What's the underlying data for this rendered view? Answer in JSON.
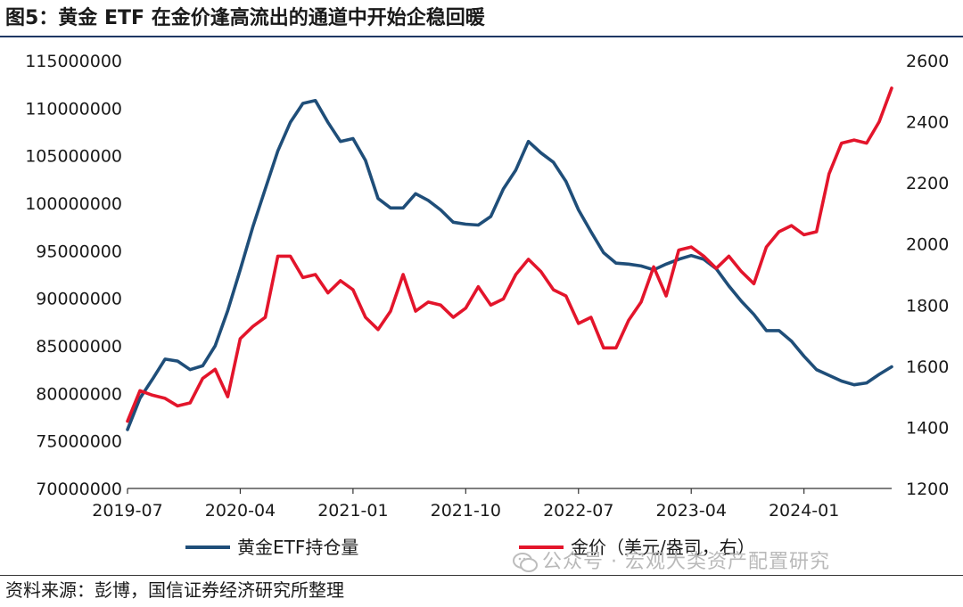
{
  "title": "图5：黄金 ETF 在金价逢高流出的通道中开始企稳回暖",
  "source": "资料来源：彭博，国信证券经济研究所整理",
  "watermark": "公众号 · 宏观大类资产配置研究",
  "colors": {
    "series1": "#1f4e79",
    "series2": "#e3152b",
    "rule": "#1f3864"
  },
  "chart_data": {
    "type": "line",
    "x_ticks": [
      "2019-07",
      "2020-04",
      "2021-01",
      "2021-10",
      "2022-07",
      "2023-04",
      "2024-01"
    ],
    "x_range": [
      "2019-07",
      "2024-08"
    ],
    "y_left": {
      "ticks": [
        "115000000",
        "110000000",
        "105000000",
        "100000000",
        "95000000",
        "90000000",
        "85000000",
        "80000000",
        "75000000",
        "70000000"
      ],
      "range": [
        70000000,
        115000000
      ]
    },
    "y_right": {
      "ticks": [
        "2600",
        "2400",
        "2200",
        "2000",
        "1800",
        "1600",
        "1400",
        "1200"
      ],
      "range": [
        1200,
        2600
      ]
    },
    "legend_position": "bottom",
    "series": [
      {
        "name": "黄金ETF持仓量",
        "axis": "left",
        "color": "#1f4e79",
        "points": [
          [
            "2019-07",
            76200000
          ],
          [
            "2019-08",
            79500000
          ],
          [
            "2019-09",
            81500000
          ],
          [
            "2019-10",
            83600000
          ],
          [
            "2019-11",
            83400000
          ],
          [
            "2019-12",
            82500000
          ],
          [
            "2020-01",
            82900000
          ],
          [
            "2020-02",
            85000000
          ],
          [
            "2020-03",
            88700000
          ],
          [
            "2020-04",
            93000000
          ],
          [
            "2020-05",
            97500000
          ],
          [
            "2020-06",
            101500000
          ],
          [
            "2020-07",
            105500000
          ],
          [
            "2020-08",
            108500000
          ],
          [
            "2020-09",
            110500000
          ],
          [
            "2020-10",
            110800000
          ],
          [
            "2020-11",
            108500000
          ],
          [
            "2020-12",
            106500000
          ],
          [
            "2021-01",
            106800000
          ],
          [
            "2021-02",
            104500000
          ],
          [
            "2021-03",
            100500000
          ],
          [
            "2021-04",
            99500000
          ],
          [
            "2021-05",
            99500000
          ],
          [
            "2021-06",
            101000000
          ],
          [
            "2021-07",
            100300000
          ],
          [
            "2021-08",
            99300000
          ],
          [
            "2021-09",
            98000000
          ],
          [
            "2021-10",
            97800000
          ],
          [
            "2021-11",
            97700000
          ],
          [
            "2021-12",
            98600000
          ],
          [
            "2022-01",
            101500000
          ],
          [
            "2022-02",
            103500000
          ],
          [
            "2022-03",
            106500000
          ],
          [
            "2022-04",
            105300000
          ],
          [
            "2022-05",
            104300000
          ],
          [
            "2022-06",
            102300000
          ],
          [
            "2022-07",
            99300000
          ],
          [
            "2022-08",
            97000000
          ],
          [
            "2022-09",
            94800000
          ],
          [
            "2022-10",
            93700000
          ],
          [
            "2022-11",
            93600000
          ],
          [
            "2022-12",
            93400000
          ],
          [
            "2023-01",
            93000000
          ],
          [
            "2023-02",
            93600000
          ],
          [
            "2023-03",
            94100000
          ],
          [
            "2023-04",
            94500000
          ],
          [
            "2023-05",
            94100000
          ],
          [
            "2023-06",
            93100000
          ],
          [
            "2023-07",
            91300000
          ],
          [
            "2023-08",
            89700000
          ],
          [
            "2023-09",
            88300000
          ],
          [
            "2023-10",
            86600000
          ],
          [
            "2023-11",
            86600000
          ],
          [
            "2023-12",
            85500000
          ],
          [
            "2024-01",
            83900000
          ],
          [
            "2024-02",
            82500000
          ],
          [
            "2024-03",
            81900000
          ],
          [
            "2024-04",
            81300000
          ],
          [
            "2024-05",
            80900000
          ],
          [
            "2024-06",
            81100000
          ],
          [
            "2024-07",
            82000000
          ],
          [
            "2024-08",
            82800000
          ]
        ]
      },
      {
        "name": "金价（美元/盎司，右）",
        "axis": "right",
        "color": "#e3152b",
        "points": [
          [
            "2019-07",
            1420
          ],
          [
            "2019-08",
            1520
          ],
          [
            "2019-09",
            1505
          ],
          [
            "2019-10",
            1495
          ],
          [
            "2019-11",
            1470
          ],
          [
            "2019-12",
            1480
          ],
          [
            "2020-01",
            1560
          ],
          [
            "2020-02",
            1590
          ],
          [
            "2020-03",
            1500
          ],
          [
            "2020-04",
            1690
          ],
          [
            "2020-05",
            1730
          ],
          [
            "2020-06",
            1760
          ],
          [
            "2020-07",
            1960
          ],
          [
            "2020-08",
            1960
          ],
          [
            "2020-09",
            1890
          ],
          [
            "2020-10",
            1900
          ],
          [
            "2020-11",
            1840
          ],
          [
            "2020-12",
            1880
          ],
          [
            "2021-01",
            1850
          ],
          [
            "2021-02",
            1760
          ],
          [
            "2021-03",
            1720
          ],
          [
            "2021-04",
            1780
          ],
          [
            "2021-05",
            1900
          ],
          [
            "2021-06",
            1780
          ],
          [
            "2021-07",
            1810
          ],
          [
            "2021-08",
            1800
          ],
          [
            "2021-09",
            1760
          ],
          [
            "2021-10",
            1790
          ],
          [
            "2021-11",
            1860
          ],
          [
            "2021-12",
            1800
          ],
          [
            "2022-01",
            1820
          ],
          [
            "2022-02",
            1900
          ],
          [
            "2022-03",
            1950
          ],
          [
            "2022-04",
            1910
          ],
          [
            "2022-05",
            1850
          ],
          [
            "2022-06",
            1830
          ],
          [
            "2022-07",
            1740
          ],
          [
            "2022-08",
            1760
          ],
          [
            "2022-09",
            1660
          ],
          [
            "2022-10",
            1660
          ],
          [
            "2022-11",
            1750
          ],
          [
            "2022-12",
            1810
          ],
          [
            "2023-01",
            1925
          ],
          [
            "2023-02",
            1830
          ],
          [
            "2023-03",
            1980
          ],
          [
            "2023-04",
            1990
          ],
          [
            "2023-05",
            1960
          ],
          [
            "2023-06",
            1920
          ],
          [
            "2023-07",
            1960
          ],
          [
            "2023-08",
            1910
          ],
          [
            "2023-09",
            1870
          ],
          [
            "2023-10",
            1990
          ],
          [
            "2023-11",
            2040
          ],
          [
            "2023-12",
            2060
          ],
          [
            "2024-01",
            2030
          ],
          [
            "2024-02",
            2040
          ],
          [
            "2024-03",
            2230
          ],
          [
            "2024-04",
            2330
          ],
          [
            "2024-05",
            2340
          ],
          [
            "2024-06",
            2330
          ],
          [
            "2024-07",
            2400
          ],
          [
            "2024-08",
            2510
          ]
        ]
      }
    ]
  }
}
